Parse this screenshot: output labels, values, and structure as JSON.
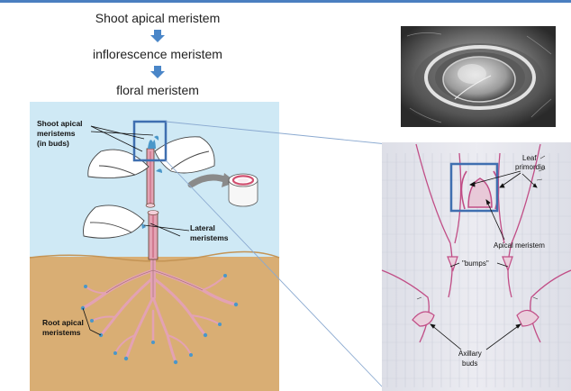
{
  "flowchart": {
    "steps": [
      "Shoot apical meristem",
      "inflorescence meristem",
      "floral meristem"
    ],
    "arrow_color": "#4a86c8"
  },
  "plant_diagram": {
    "labels": {
      "shoot_apical": [
        "Shoot apical",
        "meristems",
        "(in buds)"
      ],
      "lateral": [
        "Lateral",
        "meristems"
      ],
      "root_apical": [
        "Root apical",
        "meristems"
      ]
    },
    "colors": {
      "sky": "#cfe9f5",
      "soil": "#d9ae74",
      "stem": "#e3a2b3",
      "leaf": "#ffffff",
      "meristem": "#4a97c9",
      "highlight_box": "#3f6fb0"
    }
  },
  "micrograph": {
    "labels": {
      "leaf_primordia": [
        "Leaf",
        "primordia"
      ],
      "apical_meristem": "Apical meristem",
      "bumps": "\"bumps\"",
      "axillary_buds": [
        "Axillary",
        "buds"
      ]
    }
  }
}
